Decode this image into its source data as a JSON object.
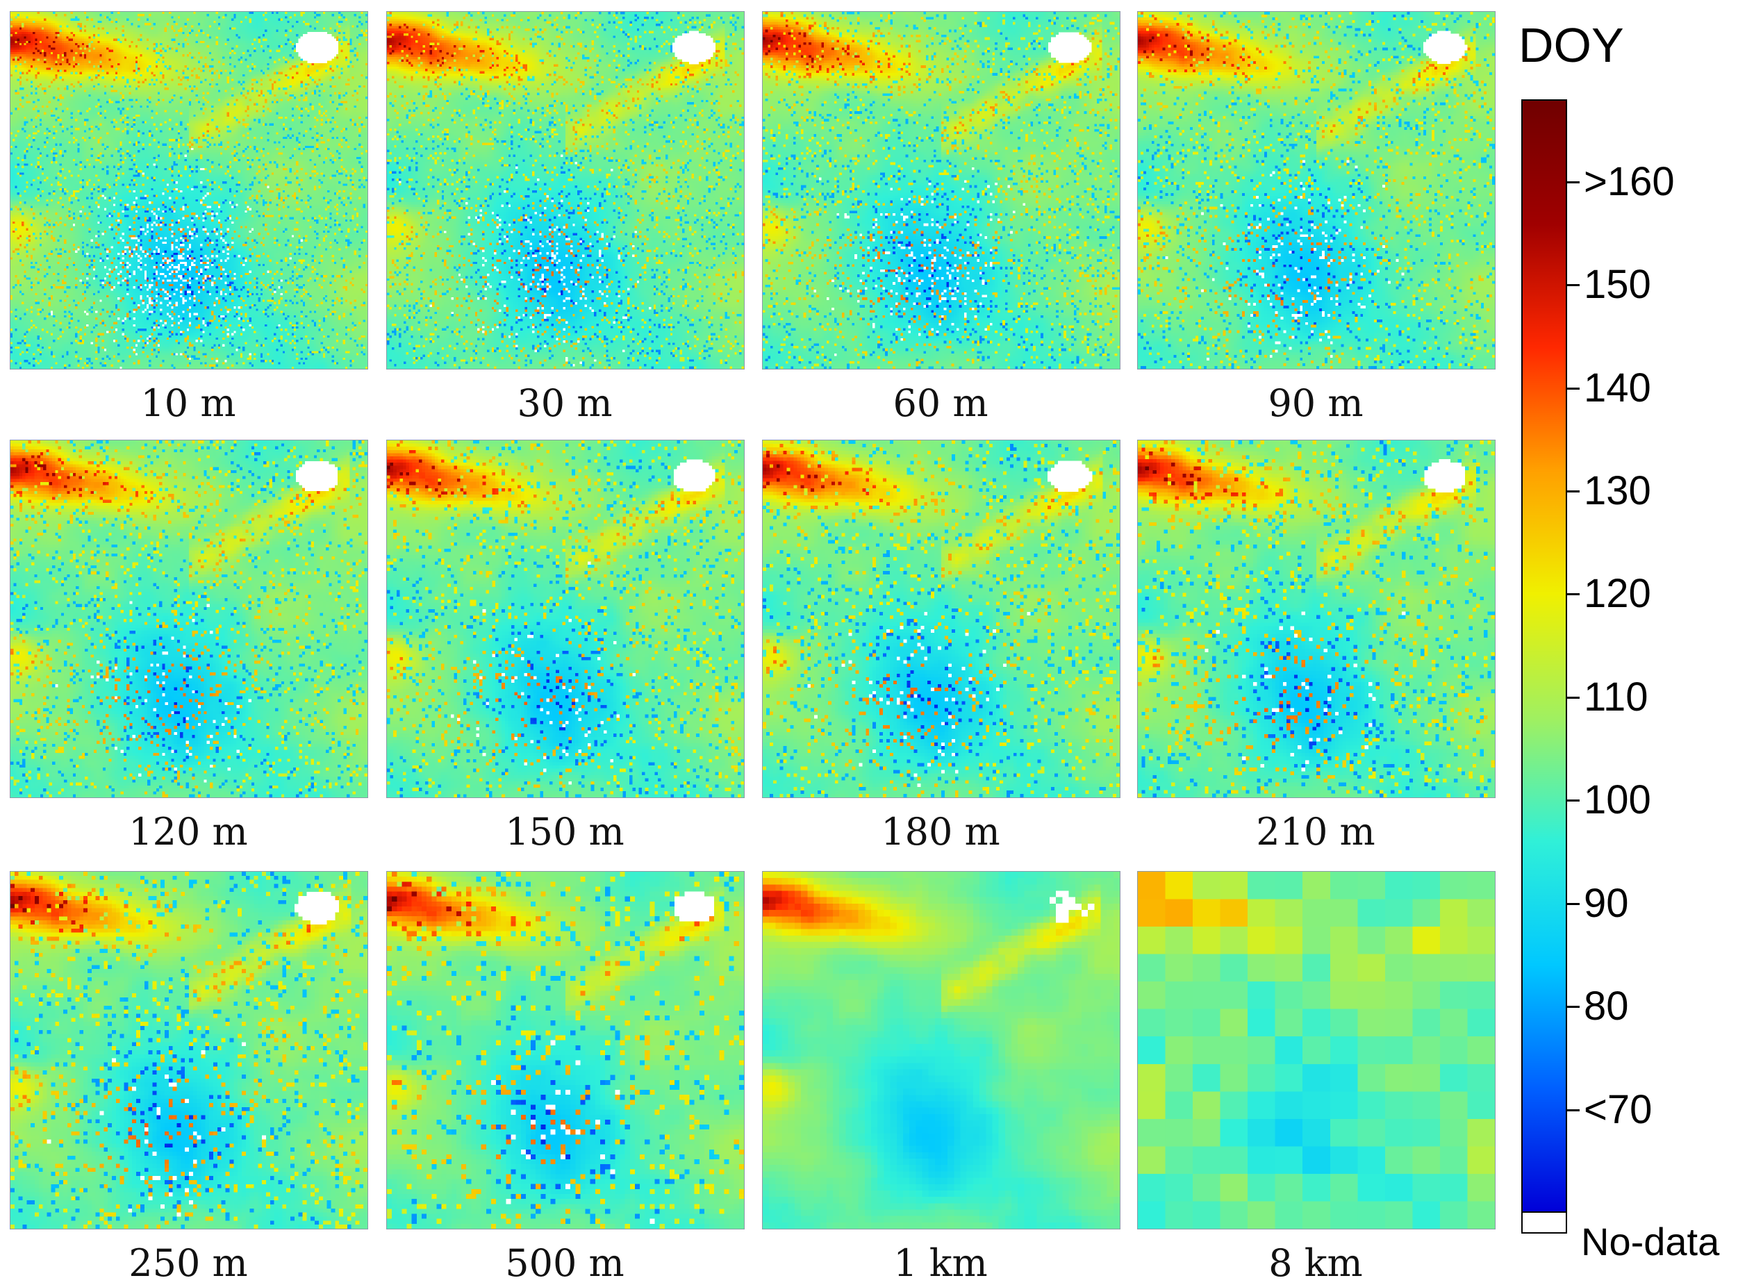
{
  "panels": [
    {
      "label": "10 m",
      "cells": 160,
      "nodata_level": "high"
    },
    {
      "label": "30 m",
      "cells": 150,
      "nodata_level": "medium"
    },
    {
      "label": "60 m",
      "cells": 140,
      "nodata_level": "medium"
    },
    {
      "label": "90 m",
      "cells": 130,
      "nodata_level": "medium"
    },
    {
      "label": "120 m",
      "cells": 120,
      "nodata_level": "low"
    },
    {
      "label": "150 m",
      "cells": 112,
      "nodata_level": "low"
    },
    {
      "label": "180 m",
      "cells": 104,
      "nodata_level": "low"
    },
    {
      "label": "210 m",
      "cells": 96,
      "nodata_level": "low"
    },
    {
      "label": "250 m",
      "cells": 88,
      "nodata_level": "low"
    },
    {
      "label": "500 m",
      "cells": 72,
      "nodata_level": "low"
    },
    {
      "label": "1 km",
      "cells": 56,
      "nodata_level": "very-low"
    },
    {
      "label": "8 km",
      "cells": 13,
      "nodata_level": "none"
    }
  ],
  "colorbar": {
    "title": "DOY",
    "range": [
      60,
      168
    ],
    "ticks": [
      {
        "value": 160,
        "label": ">160"
      },
      {
        "value": 150,
        "label": "150"
      },
      {
        "value": 140,
        "label": "140"
      },
      {
        "value": 130,
        "label": "130"
      },
      {
        "value": 120,
        "label": "120"
      },
      {
        "value": 110,
        "label": "110"
      },
      {
        "value": 100,
        "label": "100"
      },
      {
        "value": 90,
        "label": "90"
      },
      {
        "value": 80,
        "label": "80"
      },
      {
        "value": 70,
        "label": "<70"
      }
    ],
    "nodata_label": "No-data",
    "nodata_color": "#ffffff",
    "colormap": [
      "#0000d8",
      "#0060ff",
      "#00c8ff",
      "#30f0d8",
      "#a0f060",
      "#f0f000",
      "#ffa000",
      "#ff2800",
      "#a00000",
      "#700000"
    ]
  }
}
